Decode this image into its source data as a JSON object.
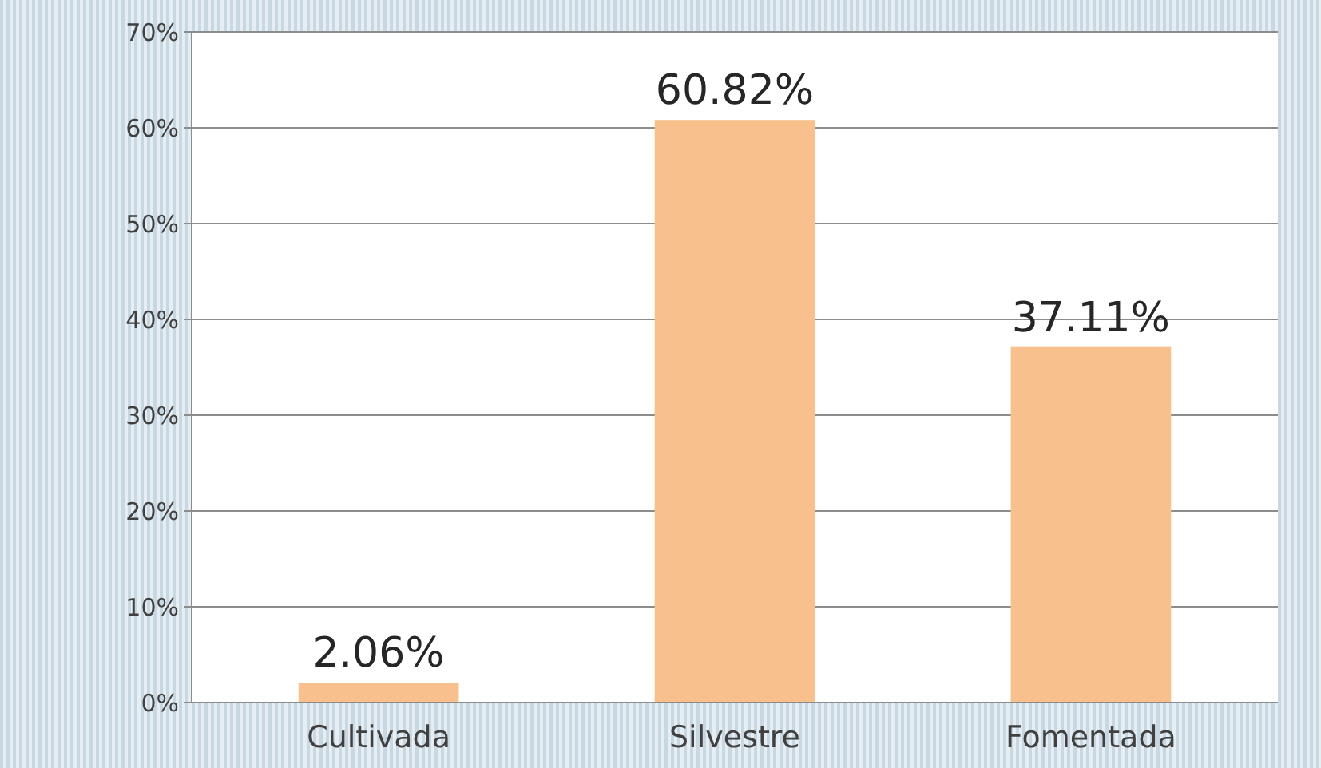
{
  "chart_data": {
    "type": "bar",
    "categories": [
      "Cultivada",
      "Silvestre",
      "Fomentada"
    ],
    "values": [
      2.06,
      60.82,
      37.11
    ],
    "color": "#f8c08c",
    "value_labels": [
      "2.06%",
      "60.82%",
      "37.11%"
    ],
    "ylim": [
      0,
      70
    ],
    "yticks": [
      {
        "value": 0,
        "label": "0%"
      },
      {
        "value": 10,
        "label": "10%"
      },
      {
        "value": 20,
        "label": "20%"
      },
      {
        "value": 30,
        "label": "30%"
      },
      {
        "value": 40,
        "label": "40%"
      },
      {
        "value": 50,
        "label": "50%"
      },
      {
        "value": 60,
        "label": "60%"
      },
      {
        "value": 70,
        "label": "70%"
      }
    ],
    "grid": "y"
  }
}
